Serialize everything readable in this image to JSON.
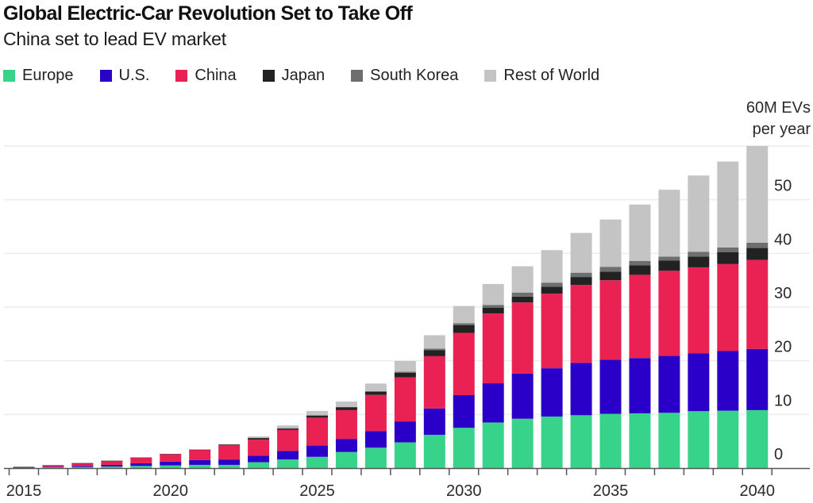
{
  "header": {
    "title": "Global Electric-Car Revolution Set to Take Off",
    "subtitle": "China set to lead EV market"
  },
  "chart_data": {
    "type": "bar",
    "stacked": true,
    "title": "Global Electric-Car Revolution Set to Take Off",
    "subtitle": "China set to lead EV market",
    "xlabel": "",
    "ylabel": "Millions of EVs per year",
    "unit_annotation": [
      "60M EVs",
      "per year"
    ],
    "ylim": [
      0,
      60
    ],
    "yticks": [
      0,
      10,
      20,
      30,
      40,
      50
    ],
    "y_axis_side": "right",
    "grid": true,
    "legend_position": "top-left",
    "categories": [
      2015,
      2016,
      2017,
      2018,
      2019,
      2020,
      2021,
      2022,
      2023,
      2024,
      2025,
      2026,
      2027,
      2028,
      2029,
      2030,
      2031,
      2032,
      2033,
      2034,
      2035,
      2036,
      2037,
      2038,
      2039,
      2040
    ],
    "xtick_labels": [
      "2015",
      "2020",
      "2025",
      "2030",
      "2035",
      "2040"
    ],
    "series": [
      {
        "name": "Europe",
        "color": "#38d38a",
        "values": [
          0.1,
          0.15,
          0.2,
          0.3,
          0.4,
          0.5,
          0.6,
          0.6,
          1.1,
          1.6,
          2.1,
          3.0,
          3.8,
          4.8,
          6.2,
          7.5,
          8.5,
          9.2,
          9.6,
          9.85,
          10.1,
          10.2,
          10.3,
          10.6,
          10.7,
          10.8
        ]
      },
      {
        "name": "U.S.",
        "color": "#2a00c8",
        "values": [
          0.05,
          0.1,
          0.2,
          0.3,
          0.5,
          0.7,
          0.9,
          1.0,
          1.2,
          1.6,
          2.1,
          2.4,
          3.1,
          3.9,
          4.9,
          6.1,
          7.3,
          8.4,
          9.0,
          9.75,
          10.1,
          10.3,
          10.6,
          10.8,
          11.1,
          11.4
        ]
      },
      {
        "name": "China",
        "color": "#ea2254",
        "values": [
          0.05,
          0.25,
          0.5,
          0.75,
          1.05,
          1.4,
          1.9,
          2.7,
          3.0,
          3.9,
          5.2,
          5.4,
          6.75,
          8.2,
          9.75,
          11.6,
          13.0,
          13.25,
          13.9,
          14.5,
          14.8,
          15.5,
          15.85,
          16.0,
          16.2,
          16.6
        ]
      },
      {
        "name": "Japan",
        "color": "#222222",
        "values": [
          0.03,
          0.03,
          0.03,
          0.03,
          0.03,
          0.03,
          0.05,
          0.1,
          0.3,
          0.25,
          0.35,
          0.5,
          0.55,
          0.85,
          1.1,
          1.4,
          1.1,
          1.1,
          1.3,
          1.5,
          1.6,
          1.8,
          1.9,
          2.0,
          2.2,
          2.2
        ]
      },
      {
        "name": "South Korea",
        "color": "#6e6e6e",
        "values": [
          0.02,
          0.02,
          0.02,
          0.02,
          0.02,
          0.02,
          0.02,
          0.05,
          0.05,
          0.1,
          0.1,
          0.1,
          0.15,
          0.2,
          0.3,
          0.4,
          0.5,
          0.75,
          0.75,
          0.8,
          0.9,
          0.8,
          0.75,
          0.9,
          0.9,
          1.0
        ]
      },
      {
        "name": "Rest of World",
        "color": "#c4c4c4",
        "values": [
          0,
          0,
          0,
          0,
          0,
          0,
          0,
          0,
          0.25,
          0.5,
          0.8,
          1.0,
          1.4,
          2.0,
          2.5,
          3.2,
          3.9,
          4.9,
          6.05,
          7.4,
          8.8,
          10.5,
          12.45,
          14.2,
          16.0,
          18.0
        ]
      }
    ]
  },
  "colors": {
    "gridline": "#ececec",
    "axis": "#555555"
  }
}
